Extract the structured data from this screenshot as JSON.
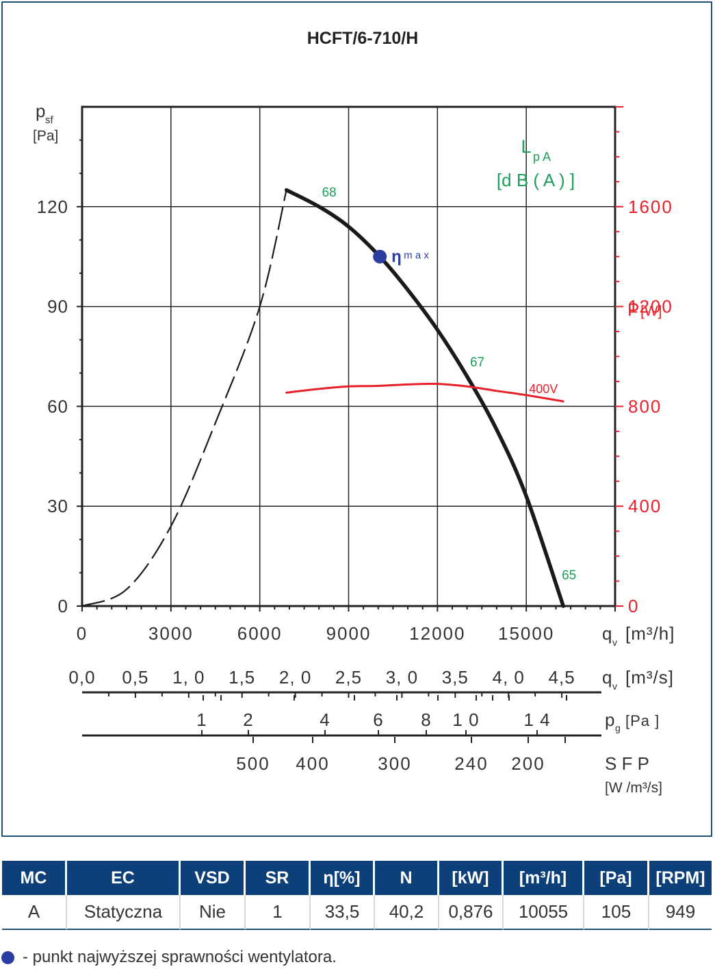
{
  "chart_data": {
    "type": "line",
    "title": "HCFT/6-710/H",
    "y_left": {
      "label": "p",
      "label_sub": "sf",
      "unit": "[Pa]",
      "ticks": [
        0,
        30,
        60,
        90,
        120
      ],
      "range": [
        0,
        150
      ]
    },
    "y_right": {
      "label": "P",
      "unit": "[W]",
      "ticks": [
        0,
        400,
        800,
        1200,
        1600
      ],
      "range": [
        0,
        2000
      ]
    },
    "x_axis": {
      "label": "q",
      "label_sub": "v",
      "unit": "[m³/h]",
      "ticks": [
        0,
        3000,
        6000,
        9000,
        12000,
        15000
      ],
      "range": [
        0,
        18000
      ]
    },
    "x_axis_m3s": {
      "label": "q",
      "label_sub": "v",
      "unit": "[m³/s]",
      "ticks": [
        "0,0",
        "0,5",
        "1, 0",
        "1,5",
        "2, 0",
        "2,5",
        "3, 0",
        "3,5",
        "4, 0",
        "4,5"
      ],
      "values": [
        0,
        0.5,
        1.0,
        1.5,
        2.0,
        2.5,
        3.0,
        3.5,
        4.0,
        4.5
      ]
    },
    "x_axis_pg": {
      "label": "p",
      "label_sub": "g",
      "unit": "[Pa ]",
      "ticks": [
        "1",
        "2",
        "4",
        "6",
        "8",
        "1 0",
        "1 4"
      ],
      "values": [
        1,
        2,
        4,
        6,
        8,
        10,
        14
      ]
    },
    "x_axis_sfp": {
      "label": "S F P",
      "unit": "[W /m³/s]",
      "ticks": [
        "500",
        "400",
        "300",
        "240",
        "200"
      ],
      "values": [
        500,
        400,
        300,
        240,
        200
      ]
    },
    "lpa_label": {
      "line1": "L",
      "sub": "p A",
      "line2": "[d B ( A ) ]"
    },
    "series": [
      {
        "name": "",
        "style": "dashed",
        "color": "#1a1a1a",
        "x": [
          0,
          1500,
          3000,
          4500,
          6000,
          6900
        ],
        "y": [
          0,
          5,
          24,
          55,
          90,
          125
        ]
      },
      {
        "name": "",
        "style": "solid",
        "color": "#1a1a1a",
        "x": [
          6900,
          8000,
          9000,
          10055,
          11000,
          12000,
          13000,
          14000,
          15000,
          16250
        ],
        "y": [
          125,
          120,
          114,
          105,
          95,
          83,
          69,
          53,
          33,
          0
        ]
      },
      {
        "name": "400V",
        "axis": "right",
        "color": "#e8202a",
        "x": [
          6900,
          8000,
          9000,
          10000,
          11000,
          12000,
          13000,
          14000,
          15000,
          16250
        ],
        "y": [
          855,
          870,
          880,
          882,
          888,
          890,
          880,
          862,
          845,
          820
        ]
      }
    ],
    "lpa_values": [
      {
        "text": "68",
        "x": 8100,
        "y": 123
      },
      {
        "text": "67",
        "x": 13100,
        "y": 72
      },
      {
        "text": "65",
        "x": 16200,
        "y": 8
      }
    ],
    "eta_max": {
      "label": "η",
      "sub": "m a x",
      "x": 10055,
      "y": 105
    },
    "grid": true
  },
  "table": {
    "headers": [
      "MC",
      "EC",
      "VSD",
      "SR",
      "η[%]",
      "N",
      "[kW]",
      "[m³/h]",
      "[Pa]",
      "[RPM]"
    ],
    "row": [
      "A",
      "Statyczna",
      "Nie",
      "1",
      "33,5",
      "40,2",
      "0,876",
      "10055",
      "105",
      "949"
    ]
  },
  "legend_note": "- punkt najwyższej sprawności wentylatora.",
  "colors": {
    "accent": "#0d3f78",
    "power": "#e8202a",
    "sound": "#1aa05a",
    "eta": "#2b3ea0"
  }
}
